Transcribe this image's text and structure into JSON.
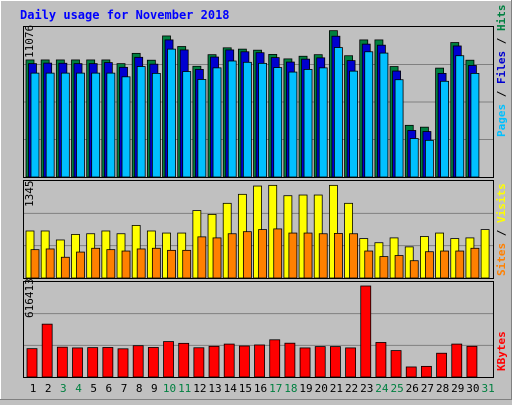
{
  "title": "Daily usage for November 2018",
  "colors": {
    "background": "#c0c0c0",
    "panel": "#c0c0c0",
    "title": "#0000ff",
    "hits": "#008040",
    "files": "#0000d0",
    "pages": "#00c0ff",
    "visits": "#ffff00",
    "sites": "#ff8000",
    "kbytes": "#ff0000",
    "weekday": "#000000",
    "weekend": "#008040"
  },
  "chart_data": [
    {
      "type": "bar",
      "name": "pages-files-hits",
      "y_max_label": "11076",
      "ylim": [
        0,
        11076
      ],
      "legend": [
        {
          "text": "Pages",
          "color": "#00c0ff"
        },
        {
          "text": " / ",
          "color": "#000000"
        },
        {
          "text": "Files",
          "color": "#0000d0"
        },
        {
          "text": " / ",
          "color": "#000000"
        },
        {
          "text": "Hits",
          "color": "#008040"
        }
      ],
      "categories": [
        "1",
        "2",
        "3",
        "4",
        "5",
        "6",
        "7",
        "8",
        "9",
        "10",
        "11",
        "12",
        "13",
        "14",
        "15",
        "16",
        "17",
        "18",
        "19",
        "20",
        "21",
        "22",
        "23",
        "24",
        "25",
        "26",
        "27",
        "28",
        "29",
        "30",
        "31"
      ],
      "series": [
        {
          "name": "Hits",
          "color": "#008040",
          "values": [
            8880,
            8880,
            8880,
            8880,
            8880,
            8880,
            8600,
            9380,
            8860,
            10700,
            9900,
            8400,
            9280,
            9800,
            9700,
            9620,
            9300,
            8960,
            9160,
            9280,
            11100,
            9200,
            10400,
            10400,
            8380,
            3920,
            3780,
            8260,
            10200,
            8860,
            0
          ]
        },
        {
          "name": "Files",
          "color": "#0000d0",
          "values": [
            8600,
            8640,
            8630,
            8600,
            8600,
            8680,
            8320,
            9080,
            8560,
            10400,
            9640,
            8160,
            9100,
            9640,
            9500,
            9430,
            9060,
            8720,
            8940,
            9040,
            10680,
            8830,
            10080,
            10000,
            8040,
            3530,
            3450,
            7860,
            9940,
            8460,
            0
          ]
        },
        {
          "name": "Pages",
          "color": "#00c0ff",
          "values": [
            7880,
            7880,
            7880,
            7880,
            7880,
            7880,
            7600,
            8380,
            7860,
            9700,
            8000,
            7400,
            8280,
            8800,
            8700,
            8620,
            8300,
            7960,
            8160,
            8280,
            9820,
            8030,
            9500,
            9400,
            7380,
            2920,
            2780,
            7260,
            9200,
            7860,
            0
          ]
        }
      ]
    },
    {
      "type": "bar",
      "name": "visits-sites",
      "y_max_label": "1345",
      "ylim": [
        0,
        1345
      ],
      "legend": [
        {
          "text": "Sites",
          "color": "#ff8000"
        },
        {
          "text": " / ",
          "color": "#000000"
        },
        {
          "text": "Visits",
          "color": "#ffff00"
        }
      ],
      "categories": [
        "1",
        "2",
        "3",
        "4",
        "5",
        "6",
        "7",
        "8",
        "9",
        "10",
        "11",
        "12",
        "13",
        "14",
        "15",
        "16",
        "17",
        "18",
        "19",
        "20",
        "21",
        "22",
        "23",
        "24",
        "25",
        "26",
        "27",
        "28",
        "29",
        "30",
        "31"
      ],
      "series": [
        {
          "name": "Visits",
          "color": "#ffff00",
          "values": [
            680,
            680,
            550,
            630,
            640,
            680,
            640,
            760,
            680,
            650,
            650,
            975,
            920,
            1080,
            1210,
            1330,
            1340,
            1190,
            1200,
            1200,
            1340,
            1080,
            570,
            510,
            580,
            450,
            600,
            650,
            570,
            580,
            700
          ]
        },
        {
          "name": "Sites",
          "color": "#ff8000",
          "values": [
            410,
            420,
            300,
            375,
            430,
            410,
            390,
            420,
            430,
            400,
            400,
            595,
            580,
            640,
            670,
            700,
            710,
            650,
            650,
            640,
            645,
            640,
            390,
            310,
            325,
            250,
            380,
            390,
            390,
            430,
            0
          ]
        }
      ]
    },
    {
      "type": "bar",
      "name": "kbytes",
      "y_max_label": "616413",
      "ylim": [
        0,
        616413
      ],
      "legend": [
        {
          "text": "KBytes",
          "color": "#ff0000"
        }
      ],
      "categories": [
        "1",
        "2",
        "3",
        "4",
        "5",
        "6",
        "7",
        "8",
        "9",
        "10",
        "11",
        "12",
        "13",
        "14",
        "15",
        "16",
        "17",
        "18",
        "19",
        "20",
        "21",
        "22",
        "23",
        "24",
        "25",
        "26",
        "27",
        "28",
        "29",
        "30",
        "31"
      ],
      "series": [
        {
          "name": "KBytes",
          "color": "#ff0000",
          "values": [
            192000,
            358000,
            202000,
            197000,
            199000,
            200000,
            191000,
            212000,
            200000,
            240000,
            228000,
            198000,
            208000,
            223000,
            210000,
            217000,
            252000,
            229000,
            197000,
            206000,
            206000,
            197000,
            616413,
            234000,
            179000,
            68000,
            72000,
            161000,
            223000,
            208000,
            0
          ]
        }
      ]
    }
  ],
  "days": [
    {
      "label": "1",
      "weekend": false
    },
    {
      "label": "2",
      "weekend": false
    },
    {
      "label": "3",
      "weekend": true
    },
    {
      "label": "4",
      "weekend": true
    },
    {
      "label": "5",
      "weekend": false
    },
    {
      "label": "6",
      "weekend": false
    },
    {
      "label": "7",
      "weekend": false
    },
    {
      "label": "8",
      "weekend": false
    },
    {
      "label": "9",
      "weekend": false
    },
    {
      "label": "10",
      "weekend": true
    },
    {
      "label": "11",
      "weekend": true
    },
    {
      "label": "12",
      "weekend": false
    },
    {
      "label": "13",
      "weekend": false
    },
    {
      "label": "14",
      "weekend": false
    },
    {
      "label": "15",
      "weekend": false
    },
    {
      "label": "16",
      "weekend": false
    },
    {
      "label": "17",
      "weekend": true
    },
    {
      "label": "18",
      "weekend": true
    },
    {
      "label": "19",
      "weekend": false
    },
    {
      "label": "20",
      "weekend": false
    },
    {
      "label": "21",
      "weekend": false
    },
    {
      "label": "22",
      "weekend": false
    },
    {
      "label": "23",
      "weekend": false
    },
    {
      "label": "24",
      "weekend": true
    },
    {
      "label": "25",
      "weekend": true
    },
    {
      "label": "26",
      "weekend": false
    },
    {
      "label": "27",
      "weekend": false
    },
    {
      "label": "28",
      "weekend": false
    },
    {
      "label": "29",
      "weekend": false
    },
    {
      "label": "30",
      "weekend": false
    },
    {
      "label": "31",
      "weekend": true
    }
  ]
}
